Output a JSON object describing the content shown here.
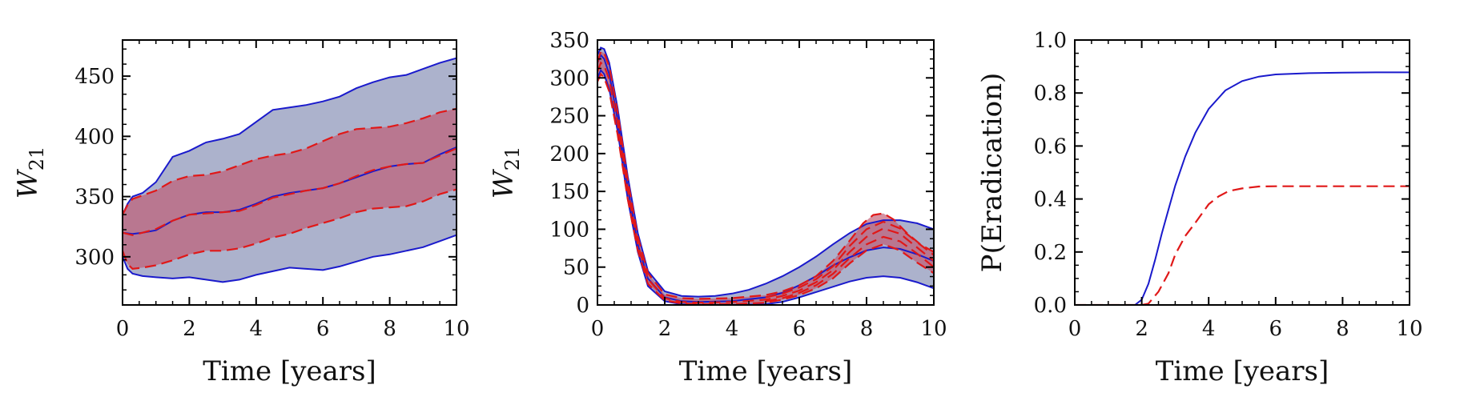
{
  "chart_data": [
    {
      "type": "area",
      "xlabel": "Time [years]",
      "ylabel": "W",
      "ylabel_sub": "21",
      "xlim": [
        0,
        10
      ],
      "ylim": [
        260,
        480
      ],
      "xticks": [
        0,
        2,
        4,
        6,
        8,
        10
      ],
      "yticks": [
        300,
        350,
        400,
        450
      ],
      "colors": {
        "blue": "#1a1acc",
        "blue_fill": "#8088b0",
        "red": "#e01818",
        "red_fill": "#c05870"
      },
      "series": [
        {
          "role": "blue-upper",
          "x": [
            0,
            0.15,
            0.3,
            0.6,
            1,
            1.5,
            2,
            2.5,
            3,
            3.5,
            4,
            4.5,
            5,
            5.5,
            6,
            6.5,
            7,
            7.5,
            8,
            8.5,
            9,
            9.5,
            10
          ],
          "y": [
            335,
            344,
            350,
            353,
            362,
            383,
            388,
            395,
            398,
            402,
            412,
            422,
            424,
            426,
            429,
            433,
            440,
            445,
            449,
            451,
            456,
            461,
            465
          ]
        },
        {
          "role": "blue-lower",
          "x": [
            0,
            0.15,
            0.3,
            0.6,
            1,
            1.5,
            2,
            2.5,
            3,
            3.5,
            4,
            4.5,
            5,
            5.5,
            6,
            6.5,
            7,
            7.5,
            8,
            8.5,
            9,
            9.5,
            10
          ],
          "y": [
            300,
            290,
            286,
            284,
            283,
            282,
            283,
            281,
            279,
            281,
            285,
            288,
            291,
            290,
            289,
            292,
            296,
            300,
            302,
            305,
            308,
            313,
            318
          ]
        },
        {
          "role": "blue-mean",
          "x": [
            0,
            0.3,
            0.6,
            1,
            1.5,
            2,
            2.5,
            3,
            3.5,
            4,
            4.5,
            5,
            5.5,
            6,
            6.5,
            7,
            7.5,
            8,
            8.5,
            9,
            9.5,
            10
          ],
          "y": [
            320,
            319,
            320,
            322,
            330,
            335,
            337,
            337,
            339,
            344,
            350,
            353,
            355,
            357,
            361,
            366,
            371,
            375,
            377,
            378,
            385,
            391
          ]
        },
        {
          "role": "red-upper",
          "x": [
            0,
            0.15,
            0.3,
            0.6,
            1,
            1.5,
            2,
            2.5,
            3,
            3.5,
            4,
            4.5,
            5,
            5.5,
            6,
            6.5,
            7,
            7.5,
            8,
            8.5,
            9,
            9.5,
            10
          ],
          "y": [
            335,
            343,
            348,
            351,
            355,
            363,
            367,
            368,
            371,
            376,
            381,
            384,
            386,
            390,
            396,
            402,
            406,
            407,
            408,
            411,
            415,
            420,
            423
          ]
        },
        {
          "role": "red-lower",
          "x": [
            0,
            0.15,
            0.3,
            0.6,
            1,
            1.5,
            2,
            2.5,
            3,
            3.5,
            4,
            4.5,
            5,
            5.5,
            6,
            6.5,
            7,
            7.5,
            8,
            8.5,
            9,
            9.5,
            10
          ],
          "y": [
            305,
            294,
            290,
            291,
            293,
            297,
            302,
            305,
            305,
            307,
            311,
            316,
            319,
            324,
            328,
            332,
            337,
            340,
            341,
            342,
            346,
            352,
            356
          ]
        },
        {
          "role": "red-mean",
          "x": [
            0,
            0.3,
            0.6,
            1,
            1.5,
            2,
            2.5,
            3,
            3.5,
            4,
            4.5,
            5,
            5.5,
            6,
            6.5,
            7,
            7.5,
            8,
            8.5,
            9,
            9.5,
            10
          ],
          "y": [
            320,
            318,
            320,
            323,
            330,
            335,
            336,
            337,
            338,
            343,
            349,
            352,
            355,
            357,
            361,
            367,
            372,
            375,
            377,
            378,
            384,
            390
          ]
        }
      ]
    },
    {
      "type": "area",
      "xlabel": "Time [years]",
      "ylabel": "W",
      "ylabel_sub": "21",
      "xlim": [
        0,
        10
      ],
      "ylim": [
        0,
        350
      ],
      "xticks": [
        0,
        2,
        4,
        6,
        8,
        10
      ],
      "yticks": [
        0,
        50,
        100,
        150,
        200,
        250,
        300,
        350
      ],
      "colors": {
        "blue": "#1a1acc",
        "blue_fill": "#8088b0",
        "red": "#e01818",
        "red_fill": "#c05870"
      },
      "series": [
        {
          "role": "blue-upper",
          "x": [
            0,
            0.1,
            0.2,
            0.35,
            0.6,
            0.9,
            1.2,
            1.5,
            2,
            2.5,
            3,
            3.5,
            4,
            4.5,
            5,
            5.5,
            6,
            6.5,
            7,
            7.5,
            8,
            8.5,
            9,
            9.5,
            10
          ],
          "y": [
            330,
            340,
            338,
            320,
            260,
            170,
            95,
            45,
            18,
            12,
            11,
            12,
            15,
            20,
            28,
            38,
            50,
            64,
            80,
            95,
            107,
            112,
            112,
            108,
            100
          ]
        },
        {
          "role": "blue-lower",
          "x": [
            0,
            0.1,
            0.2,
            0.35,
            0.6,
            0.9,
            1.2,
            1.5,
            2,
            2.5,
            3,
            4,
            5,
            5.5,
            6,
            6.5,
            7,
            7.5,
            8,
            8.5,
            9,
            9.5,
            10
          ],
          "y": [
            300,
            310,
            305,
            285,
            230,
            140,
            70,
            25,
            5,
            1,
            0,
            0,
            1,
            4,
            10,
            17,
            24,
            31,
            36,
            38,
            36,
            30,
            22
          ]
        },
        {
          "role": "blue-mean",
          "x": [
            0,
            0.1,
            0.2,
            0.35,
            0.6,
            0.9,
            1.2,
            1.5,
            2,
            2.5,
            3,
            4,
            5,
            5.5,
            6,
            6.5,
            7,
            7.5,
            8,
            8.5,
            9,
            9.5,
            10
          ],
          "y": [
            320,
            330,
            325,
            305,
            245,
            155,
            80,
            35,
            10,
            5,
            4,
            5,
            10,
            16,
            26,
            38,
            52,
            63,
            72,
            76,
            74,
            67,
            58
          ]
        },
        {
          "role": "red-upper",
          "x": [
            0,
            0.1,
            0.2,
            0.35,
            0.6,
            0.9,
            1.2,
            1.5,
            2,
            2.5,
            3,
            4,
            5,
            5.5,
            6,
            6.5,
            7,
            7.5,
            7.9,
            8.2,
            8.5,
            8.8,
            9.2,
            9.6,
            10
          ],
          "y": [
            320,
            335,
            333,
            315,
            255,
            165,
            90,
            42,
            14,
            9,
            8,
            9,
            13,
            18,
            26,
            38,
            58,
            85,
            108,
            119,
            121,
            113,
            95,
            80,
            70
          ]
        },
        {
          "role": "red-lower",
          "x": [
            0,
            0.1,
            0.2,
            0.35,
            0.6,
            0.9,
            1.2,
            1.5,
            2,
            2.5,
            3,
            4,
            5,
            5.5,
            6,
            6.5,
            7,
            7.5,
            8,
            8.5,
            9,
            9.5,
            10
          ],
          "y": [
            295,
            305,
            300,
            282,
            225,
            140,
            72,
            28,
            6,
            2,
            1,
            1,
            3,
            7,
            13,
            22,
            35,
            55,
            72,
            80,
            72,
            56,
            42
          ]
        },
        {
          "role": "red-mean",
          "x": [
            0,
            0.1,
            0.2,
            0.35,
            0.6,
            0.9,
            1.2,
            1.5,
            2,
            2.5,
            3,
            4,
            5,
            5.5,
            6,
            6.5,
            7,
            7.5,
            8,
            8.5,
            9,
            9.5,
            10
          ],
          "y": [
            308,
            320,
            316,
            298,
            240,
            152,
            80,
            34,
            9,
            4,
            3,
            4,
            7,
            12,
            19,
            30,
            46,
            70,
            90,
            101,
            94,
            76,
            58
          ]
        },
        {
          "role": "red-inner-upper",
          "x": [
            5,
            5.5,
            6,
            6.5,
            7,
            7.5,
            8,
            8.5,
            9,
            9.5,
            10
          ],
          "y": [
            10,
            15,
            23,
            34,
            51,
            78,
            100,
            110,
            101,
            83,
            66
          ]
        },
        {
          "role": "red-inner-lower",
          "x": [
            5,
            5.5,
            6,
            6.5,
            7,
            7.5,
            8,
            8.5,
            9,
            9.5,
            10
          ],
          "y": [
            5,
            9,
            16,
            26,
            41,
            62,
            80,
            90,
            84,
            68,
            50
          ]
        }
      ]
    },
    {
      "type": "line",
      "xlabel": "Time [years]",
      "ylabel": "P(Eradication)",
      "xlim": [
        0,
        10
      ],
      "ylim": [
        0,
        1
      ],
      "xticks": [
        0,
        2,
        4,
        6,
        8,
        10
      ],
      "yticks": [
        0.0,
        0.2,
        0.4,
        0.6,
        0.8,
        1.0
      ],
      "ytick_labels": [
        "0.0",
        "0.2",
        "0.4",
        "0.6",
        "0.8",
        "1.0"
      ],
      "colors": {
        "blue": "#1a1acc",
        "red": "#e01818"
      },
      "series": [
        {
          "role": "blue",
          "x": [
            0,
            1,
            1.8,
            2.0,
            2.2,
            2.4,
            2.6,
            2.8,
            3.0,
            3.3,
            3.6,
            4.0,
            4.5,
            5.0,
            5.5,
            6,
            7,
            8,
            9,
            10
          ],
          "y": [
            0,
            0,
            0,
            0.02,
            0.08,
            0.17,
            0.27,
            0.36,
            0.45,
            0.56,
            0.65,
            0.74,
            0.81,
            0.845,
            0.862,
            0.87,
            0.875,
            0.877,
            0.878,
            0.878
          ]
        },
        {
          "role": "red",
          "x": [
            0,
            1,
            2,
            2.2,
            2.5,
            2.8,
            3.0,
            3.3,
            3.6,
            4.0,
            4.3,
            4.6,
            5.0,
            5.5,
            6,
            7,
            8,
            9,
            10
          ],
          "y": [
            0,
            0,
            0,
            0.005,
            0.05,
            0.12,
            0.19,
            0.26,
            0.31,
            0.38,
            0.41,
            0.43,
            0.44,
            0.447,
            0.448,
            0.448,
            0.448,
            0.448,
            0.448
          ]
        }
      ]
    }
  ]
}
